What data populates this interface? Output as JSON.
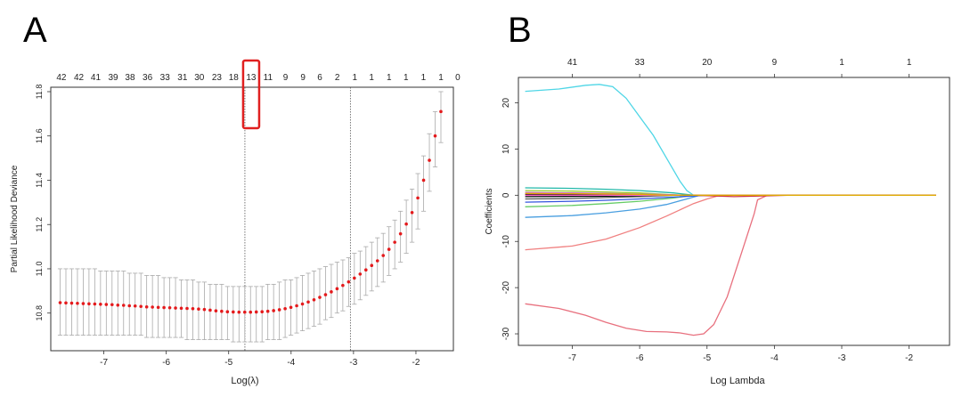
{
  "panel_labels": {
    "a": "A",
    "b": "B"
  },
  "colors": {
    "point": "#e41a1c",
    "errorbar": "#aaaaaa",
    "highlight": "#e02020",
    "axis": "#333333"
  },
  "chart_data": [
    {
      "type": "scatter",
      "panel": "A",
      "xlabel": "Log(λ)",
      "ylabel": "Partial Likelihood Deviance",
      "xlim": [
        -7.85,
        -1.4
      ],
      "ylim": [
        10.63,
        11.82
      ],
      "xticks": [
        -7,
        -6,
        -5,
        -4,
        -3,
        -2
      ],
      "yticks": [
        10.8,
        11.0,
        11.2,
        11.4,
        11.6,
        11.8
      ],
      "xtick_labels": [
        "-7",
        "-6",
        "-5",
        "-4",
        "-3",
        "-2"
      ],
      "ytick_labels": [
        "10.8",
        "11.0",
        "11.2",
        "11.4",
        "11.6",
        "11.8"
      ],
      "top_labels": [
        "42",
        "42",
        "41",
        "39",
        "38",
        "36",
        "33",
        "31",
        "30",
        "23",
        "18",
        "13",
        "11",
        "9",
        "9",
        "6",
        "2",
        "1",
        "1",
        "1",
        "1",
        "1",
        "1",
        "0"
      ],
      "top_label_x": [
        -7.68,
        -7.4,
        -7.13,
        -6.85,
        -6.58,
        -6.3,
        -6.02,
        -5.74,
        -5.47,
        -5.19,
        -4.92,
        -4.64,
        -4.37,
        -4.09,
        -3.81,
        -3.54,
        -3.26,
        -2.98,
        -2.71,
        -2.43,
        -2.16,
        -1.88,
        -1.6,
        -1.33
      ],
      "highlighted_label": "13",
      "vlines": [
        -4.74,
        -3.05
      ],
      "points_x_start": -7.7,
      "points_x_end": -1.6,
      "y": [
        10.847,
        10.846,
        10.845,
        10.844,
        10.843,
        10.842,
        10.841,
        10.84,
        10.839,
        10.838,
        10.836,
        10.835,
        10.833,
        10.832,
        10.83,
        10.828,
        10.827,
        10.826,
        10.825,
        10.824,
        10.823,
        10.822,
        10.821,
        10.82,
        10.818,
        10.816,
        10.813,
        10.81,
        10.808,
        10.806,
        10.805,
        10.804,
        10.804,
        10.804,
        10.805,
        10.806,
        10.808,
        10.811,
        10.815,
        10.82,
        10.826,
        10.833,
        10.841,
        10.85,
        10.86,
        10.871,
        10.883,
        10.896,
        10.91,
        10.925,
        10.941,
        10.958,
        10.976,
        10.995,
        11.015,
        11.036,
        11.06,
        11.088,
        11.12,
        11.158,
        11.202,
        11.254,
        11.32,
        11.4,
        11.49,
        11.6,
        11.71
      ],
      "err_low": [
        10.7,
        10.7,
        10.7,
        10.7,
        10.7,
        10.7,
        10.7,
        10.7,
        10.7,
        10.7,
        10.7,
        10.7,
        10.7,
        10.7,
        10.7,
        10.69,
        10.69,
        10.69,
        10.69,
        10.69,
        10.69,
        10.69,
        10.68,
        10.68,
        10.68,
        10.68,
        10.68,
        10.68,
        10.68,
        10.68,
        10.67,
        10.67,
        10.67,
        10.67,
        10.67,
        10.67,
        10.68,
        10.68,
        10.68,
        10.69,
        10.7,
        10.71,
        10.72,
        10.73,
        10.74,
        10.75,
        10.77,
        10.78,
        10.8,
        10.81,
        10.83,
        10.84,
        10.86,
        10.88,
        10.9,
        10.92,
        10.94,
        10.97,
        11.0,
        11.03,
        11.07,
        11.12,
        11.18,
        11.26,
        11.35,
        11.46,
        11.57
      ],
      "err_high": [
        11.0,
        11.0,
        11.0,
        11.0,
        11.0,
        11.0,
        11.0,
        10.99,
        10.99,
        10.99,
        10.99,
        10.99,
        10.98,
        10.98,
        10.98,
        10.97,
        10.97,
        10.97,
        10.96,
        10.96,
        10.96,
        10.95,
        10.95,
        10.95,
        10.94,
        10.94,
        10.93,
        10.93,
        10.93,
        10.92,
        10.92,
        10.92,
        10.92,
        10.92,
        10.92,
        10.92,
        10.93,
        10.93,
        10.94,
        10.95,
        10.95,
        10.96,
        10.97,
        10.98,
        10.99,
        11.0,
        11.01,
        11.02,
        11.03,
        11.04,
        11.05,
        11.07,
        11.08,
        11.1,
        11.12,
        11.14,
        11.16,
        11.19,
        11.22,
        11.26,
        11.31,
        11.36,
        11.43,
        11.51,
        11.61,
        11.71,
        11.8
      ]
    },
    {
      "type": "line",
      "panel": "B",
      "xlabel": "Log Lambda",
      "ylabel": "Coefficients",
      "xlim": [
        -7.8,
        -1.4
      ],
      "ylim": [
        -32.5,
        25.5
      ],
      "xticks": [
        -7,
        -6,
        -5,
        -4,
        -3,
        -2
      ],
      "yticks": [
        -30,
        -20,
        -10,
        0,
        10,
        20
      ],
      "xtick_labels": [
        "-7",
        "-6",
        "-5",
        "-4",
        "-3",
        "-2"
      ],
      "ytick_labels": [
        "-30",
        "-20",
        "-10",
        "0",
        "10",
        "20"
      ],
      "top_labels": [
        "41",
        "33",
        "20",
        "9",
        "1",
        "1"
      ],
      "top_label_x": [
        -7,
        -6,
        -5,
        -4,
        -3,
        -2
      ],
      "series": [
        {
          "color": "#4fd6e6",
          "x": [
            -7.7,
            -7.2,
            -6.8,
            -6.6,
            -6.4,
            -6.2,
            -6.0,
            -5.8,
            -5.6,
            -5.4,
            -5.3,
            -5.2,
            -5.0,
            -4.0,
            -1.6
          ],
          "y": [
            22.5,
            23.0,
            23.8,
            24.0,
            23.5,
            21,
            17,
            13,
            8,
            3,
            1,
            0,
            0,
            0,
            0
          ]
        },
        {
          "color": "#e8707e",
          "x": [
            -7.7,
            -7.2,
            -6.8,
            -6.5,
            -6.2,
            -5.9,
            -5.6,
            -5.4,
            -5.2,
            -5.05,
            -4.9,
            -4.7,
            -4.5,
            -4.3,
            -4.25,
            -4.1,
            -1.6
          ],
          "y": [
            -23.5,
            -24.5,
            -26,
            -27.5,
            -28.8,
            -29.5,
            -29.6,
            -29.8,
            -30.3,
            -30,
            -28,
            -22,
            -13,
            -4,
            -1,
            0,
            0
          ]
        },
        {
          "color": "#f08080",
          "x": [
            -7.7,
            -7.0,
            -6.5,
            -6.0,
            -5.6,
            -5.2,
            -5.0,
            -4.8,
            -1.6
          ],
          "y": [
            -11.8,
            -11,
            -9.5,
            -7,
            -4.5,
            -1.8,
            -0.8,
            0,
            0
          ]
        },
        {
          "color": "#4a9fe0",
          "x": [
            -7.7,
            -7.0,
            -6.5,
            -6.0,
            -5.6,
            -5.3,
            -5.1,
            -1.6
          ],
          "y": [
            -4.8,
            -4.4,
            -3.8,
            -3,
            -2,
            -0.8,
            0,
            0
          ]
        },
        {
          "color": "#66cc66",
          "x": [
            -7.7,
            -7.0,
            -6.5,
            -6.0,
            -5.5,
            -5.2,
            -1.6
          ],
          "y": [
            -2.5,
            -2.2,
            -1.8,
            -1.3,
            -0.6,
            0,
            0
          ]
        },
        {
          "color": "#3355dd",
          "x": [
            -7.7,
            -7.0,
            -6.5,
            -6.0,
            -5.5,
            -5.0,
            -1.6
          ],
          "y": [
            -1.5,
            -1.3,
            -1.1,
            -0.8,
            -0.4,
            0,
            0
          ]
        },
        {
          "color": "#20b8a8",
          "x": [
            -7.7,
            -7.0,
            -6.5,
            -6.0,
            -5.5,
            -5.2,
            -1.6
          ],
          "y": [
            1.6,
            1.5,
            1.3,
            1.0,
            0.5,
            0,
            0
          ]
        },
        {
          "color": "#9acd32",
          "x": [
            -7.7,
            -7.0,
            -6.5,
            -6.0,
            -5.4,
            -1.6
          ],
          "y": [
            1.0,
            0.9,
            0.7,
            0.5,
            0,
            0
          ]
        },
        {
          "color": "#cc66cc",
          "x": [
            -7.7,
            -7.0,
            -6.5,
            -5.8,
            -5.3,
            -1.6
          ],
          "y": [
            0.6,
            0.5,
            0.4,
            0.2,
            0,
            0
          ]
        },
        {
          "color": "#000000",
          "x": [
            -7.7,
            -7.0,
            -6.5,
            -6.0,
            -5.5,
            -1.6
          ],
          "y": [
            0.2,
            0.2,
            0.1,
            0.05,
            0,
            0
          ]
        },
        {
          "color": "#000000",
          "x": [
            -7.7,
            -7.0,
            -6.5,
            -6.0,
            -5.5,
            -1.6
          ],
          "y": [
            -0.3,
            -0.25,
            -0.2,
            -0.1,
            0,
            0
          ]
        },
        {
          "color": "#555555",
          "x": [
            -7.7,
            -7.0,
            -6.5,
            -6.0,
            -5.5,
            -1.6
          ],
          "y": [
            -0.8,
            -0.7,
            -0.5,
            -0.3,
            0,
            0
          ]
        },
        {
          "color": "#ff66cc",
          "x": [
            -7.7,
            -1.6
          ],
          "y": [
            0,
            0
          ]
        },
        {
          "color": "#cc3344",
          "x": [
            -5.2,
            -4.6,
            -4.3,
            -3.8,
            -1.6
          ],
          "y": [
            0,
            -0.3,
            -0.2,
            0,
            0
          ]
        },
        {
          "color": "#ddaa00",
          "x": [
            -7.7,
            -7.0,
            -6.5,
            -6.0,
            -5.6,
            -1.6
          ],
          "y": [
            0.4,
            0.35,
            0.3,
            0.2,
            0,
            0
          ]
        }
      ]
    }
  ]
}
